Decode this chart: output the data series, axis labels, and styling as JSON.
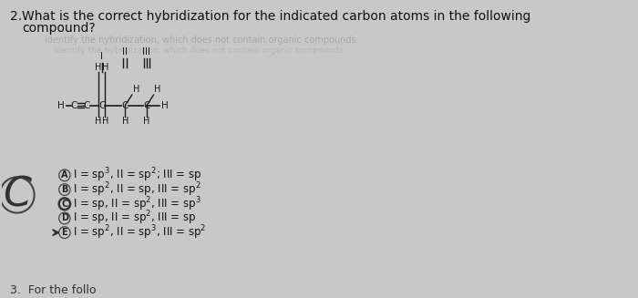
{
  "background_color": "#c8c8c8",
  "question_text_line1": "What is the correct hybridization for the indicated carbon atoms in the following",
  "question_text_line2": "compound?",
  "faded_text": "identify the hybridization, which does not contain organic compounds",
  "choices": [
    {
      "label": "A",
      "text": "I = sp³, II = sp²; III = sp"
    },
    {
      "label": "B",
      "text": "I = sp², II = sp, III = sp²"
    },
    {
      "label": "C",
      "text": "I = sp, II = sp², III = sp³"
    },
    {
      "label": "D",
      "text": "I = sp, II = sp², III = sp"
    },
    {
      "label": "E",
      "text": "I = sp², II = sp³, III = sp²"
    }
  ],
  "circled_answer": "C",
  "bottom_text": "3.  For the follo",
  "mol_color": "#1a1a1a"
}
